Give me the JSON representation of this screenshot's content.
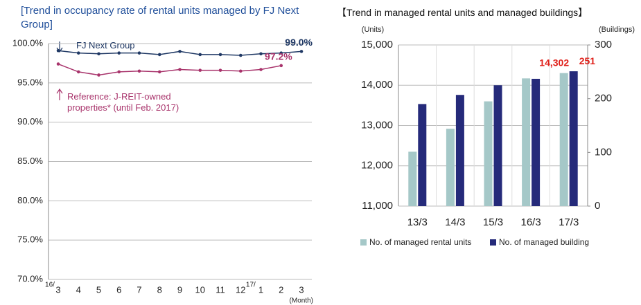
{
  "chart_data": [
    {
      "type": "line",
      "title": "[Trend in occupancy rate of rental units managed by FJ Next Group]",
      "categories": [
        "3",
        "4",
        "5",
        "6",
        "7",
        "8",
        "9",
        "10",
        "11",
        "12",
        "1",
        "2",
        "3"
      ],
      "year_labels": [
        "16/",
        "17/"
      ],
      "xlabel": "(Month)",
      "series": [
        {
          "name": "FJ Next Group",
          "color": "#1f3864",
          "values": [
            99.1,
            98.8,
            98.7,
            98.8,
            98.8,
            98.6,
            99.0,
            98.6,
            98.6,
            98.5,
            98.7,
            98.8,
            99.0
          ],
          "value_labels": [
            null,
            null,
            null,
            null,
            null,
            null,
            null,
            null,
            null,
            null,
            null,
            null,
            "99.0%"
          ]
        },
        {
          "name": "Reference: J-REIT-owned properties* (until Feb. 2017)",
          "color": "#a8336b",
          "values": [
            97.4,
            96.4,
            96.0,
            96.4,
            96.5,
            96.4,
            96.7,
            96.6,
            96.6,
            96.5,
            96.7,
            97.2,
            null
          ],
          "value_labels": [
            null,
            null,
            null,
            null,
            null,
            null,
            null,
            null,
            null,
            null,
            null,
            "97.2%",
            null
          ]
        }
      ],
      "ylim": [
        70,
        100
      ],
      "yticks": [
        {
          "value": 70,
          "label": "70.0%"
        },
        {
          "value": 75,
          "label": "75.0%"
        },
        {
          "value": 80,
          "label": "80.0%"
        },
        {
          "value": 85,
          "label": "85.0%"
        },
        {
          "value": 90,
          "label": "90.0%"
        },
        {
          "value": 95,
          "label": "95.0%"
        },
        {
          "value": 100,
          "label": "100.0%"
        }
      ],
      "grid": true
    },
    {
      "type": "bar",
      "title": "【Trend in managed rental units and managed buildings】",
      "categories": [
        "13/3",
        "14/3",
        "15/3",
        "16/3",
        "17/3"
      ],
      "ylabel": "(Units)",
      "y2label": "(Buildings)",
      "series": [
        {
          "name": "No. of managed rental units",
          "color": "#a5c8c8",
          "values": [
            12350,
            12920,
            13600,
            14170,
            14302
          ],
          "value_labels": [
            null,
            null,
            null,
            null,
            "14,302"
          ]
        },
        {
          "name": "No. of managed building",
          "color": "#252a7a",
          "axis": "y2",
          "values": [
            190,
            207,
            225,
            237,
            251
          ],
          "value_labels": [
            null,
            null,
            null,
            null,
            "251"
          ]
        }
      ],
      "ylim": [
        11000,
        15000
      ],
      "yticks": [
        {
          "value": 11000,
          "label": "11,000"
        },
        {
          "value": 12000,
          "label": "12,000"
        },
        {
          "value": 13000,
          "label": "13,000"
        },
        {
          "value": 14000,
          "label": "14,000"
        },
        {
          "value": 15000,
          "label": "15,000"
        }
      ],
      "y2lim": [
        0,
        300
      ],
      "y2ticks": [
        0,
        100,
        200,
        300
      ],
      "grid": true
    }
  ]
}
